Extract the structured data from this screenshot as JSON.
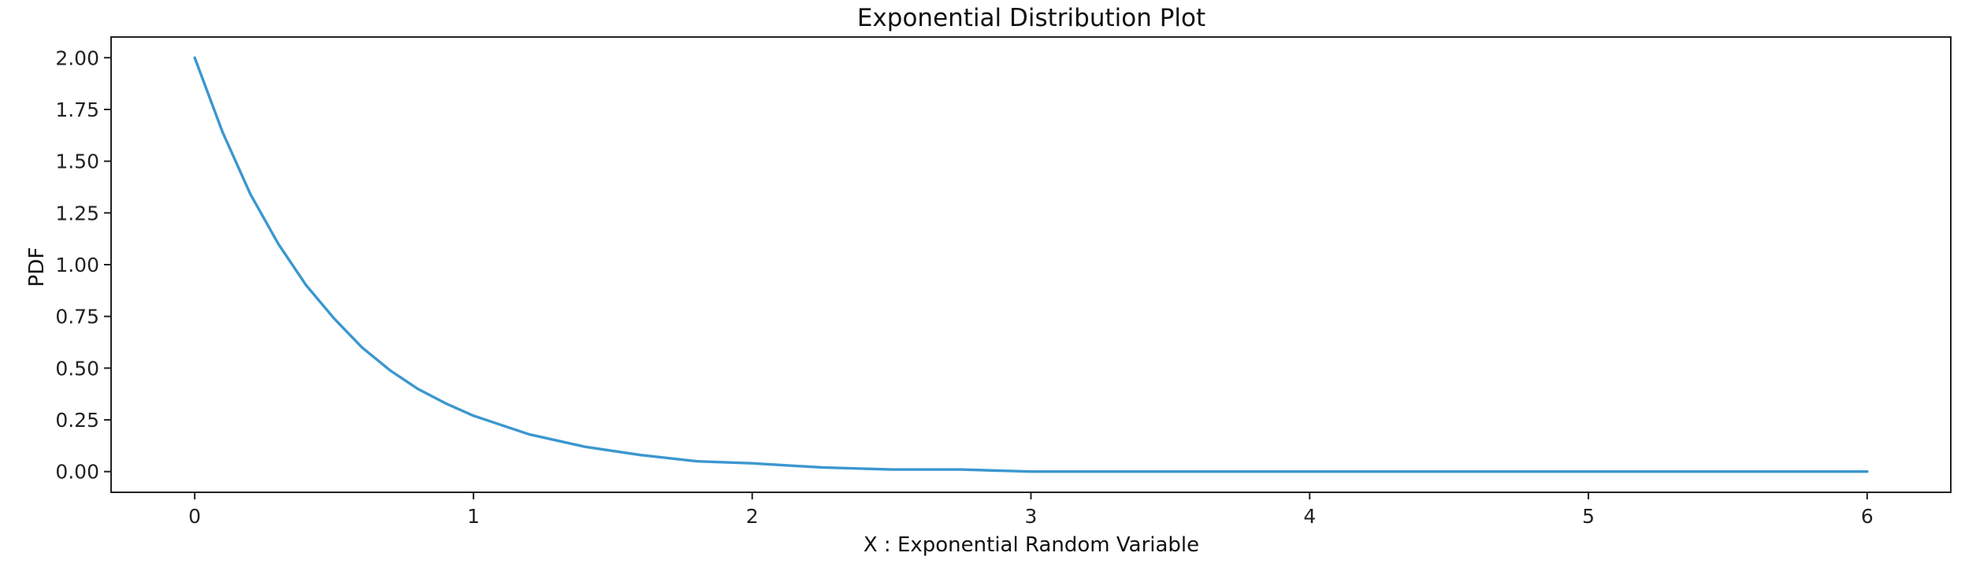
{
  "chart_data": {
    "type": "line",
    "title": "Exponential Distribution Plot",
    "xlabel": "X : Exponential Random Variable",
    "ylabel": "PDF",
    "xlim": [
      -0.3,
      6.3
    ],
    "ylim": [
      -0.1,
      2.1
    ],
    "x_ticks": [
      0,
      1,
      2,
      3,
      4,
      5,
      6
    ],
    "x_tick_labels": [
      "0",
      "1",
      "2",
      "3",
      "4",
      "5",
      "6"
    ],
    "y_ticks": [
      0,
      0.25,
      0.5,
      0.75,
      1,
      1.25,
      1.5,
      1.75,
      2
    ],
    "y_tick_labels": [
      "0.00",
      "0.25",
      "0.50",
      "0.75",
      "1.00",
      "1.25",
      "1.50",
      "1.75",
      "2.00"
    ],
    "grid": false,
    "series": [
      {
        "color": "#3b97cf",
        "x": [
          0,
          0.1,
          0.2,
          0.3,
          0.4,
          0.5,
          0.6,
          0.7,
          0.8,
          0.9,
          1.0,
          1.2,
          1.4,
          1.6,
          1.8,
          2.0,
          2.25,
          2.5,
          2.75,
          3.0,
          3.5,
          4.0,
          4.5,
          5.0,
          5.5,
          6.0
        ],
        "y": [
          2.0,
          1.64,
          1.34,
          1.1,
          0.9,
          0.74,
          0.6,
          0.49,
          0.4,
          0.33,
          0.27,
          0.18,
          0.12,
          0.08,
          0.05,
          0.04,
          0.02,
          0.01,
          0.01,
          0.0,
          0.0,
          0.0,
          0.0,
          0.0,
          0.0,
          0.0
        ]
      }
    ]
  }
}
